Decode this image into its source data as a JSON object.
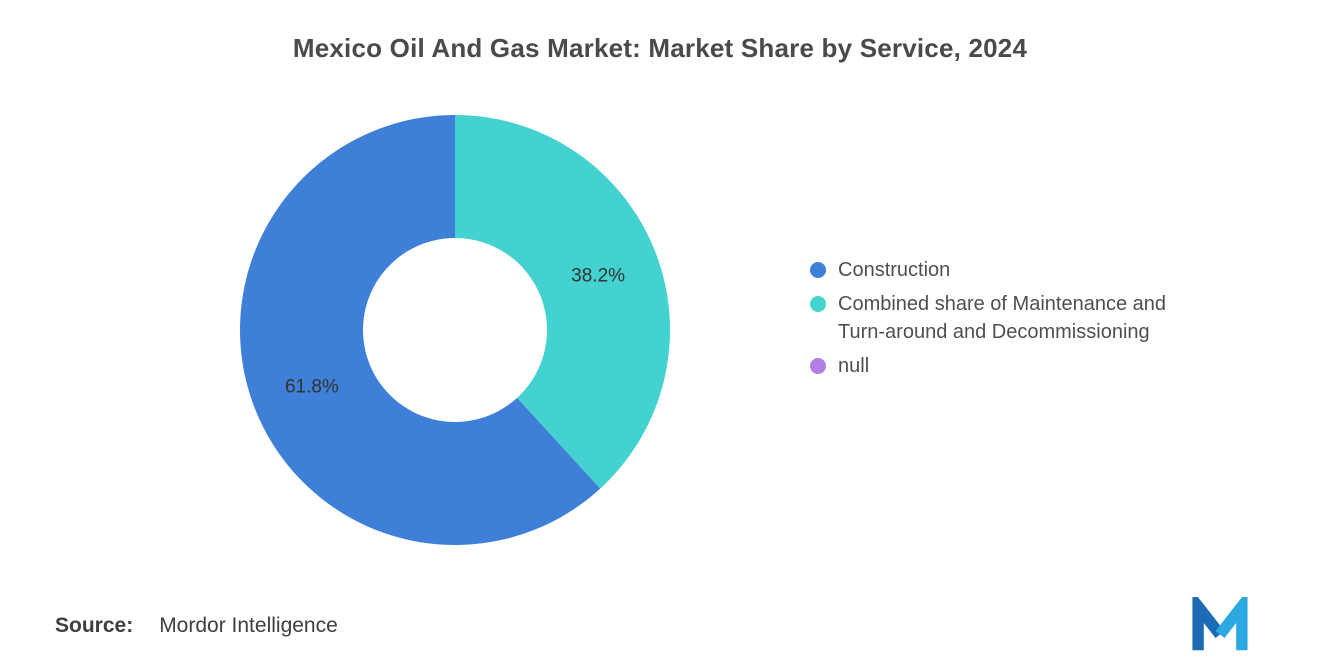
{
  "chart_data": {
    "type": "pie",
    "subtype": "donut",
    "title": "Mexico Oil And Gas Market: Market Share by Service, 2024",
    "start_angle_deg": 0,
    "direction": "clockwise",
    "inner_radius_ratio": 0.43,
    "legend_position": "right",
    "slices": [
      {
        "id": "maintenance",
        "label": "Combined share of Maintenance and Turn-around and Decommissioning",
        "value": 38.2,
        "data_label": "38.2%",
        "color": "#43D2D0"
      },
      {
        "id": "construction",
        "label": "Construction",
        "value": 61.8,
        "data_label": "61.8%",
        "color": "#3E7FD8"
      }
    ],
    "legend": [
      {
        "label": "Construction",
        "color": "#3E7FD8"
      },
      {
        "label": "Combined share of Maintenance and Turn-around and Decommissioning",
        "color": "#43D2D0"
      },
      {
        "label": "null",
        "color": "#B17FE3"
      }
    ]
  },
  "source": {
    "label": "Source:",
    "value": "Mordor Intelligence"
  },
  "logo": {
    "name": "mordor-intelligence-logo",
    "color_dark": "#1C6BB5",
    "color_light": "#2BA9E0"
  }
}
